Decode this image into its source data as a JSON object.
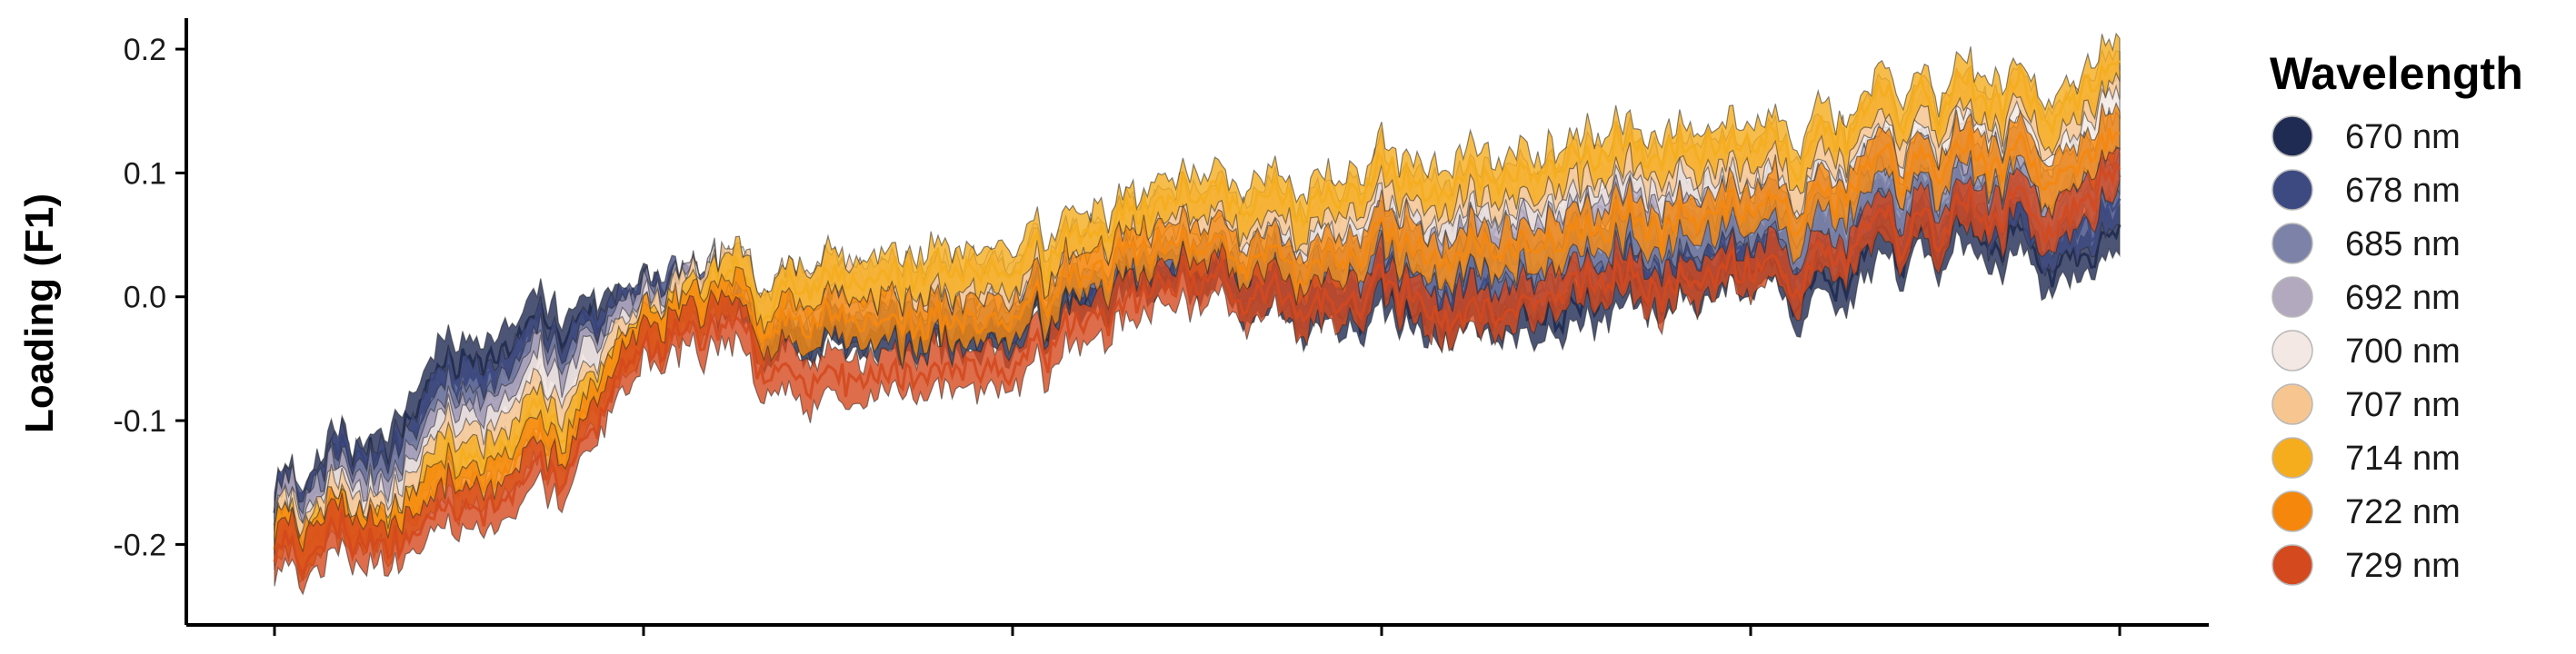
{
  "chart_data": {
    "type": "line",
    "title": "",
    "xlabel": "",
    "ylabel": "Loading (F1)",
    "ylim": [
      -0.265,
      0.225
    ],
    "y_ticks": [
      "-0.2",
      "-0.1",
      "0.0",
      "0.1",
      "0.2"
    ],
    "y_tick_values": [
      -0.2,
      -0.1,
      0.0,
      0.1,
      0.2
    ],
    "x_tick_count": 6,
    "x_tick_labels_visible": false,
    "grid": false,
    "legend": {
      "title": "Wavelength",
      "placement": "right"
    },
    "x": [
      0,
      5,
      10,
      15,
      20,
      25,
      30,
      35,
      40,
      45,
      50,
      55,
      60,
      65,
      70,
      75,
      80,
      85,
      90,
      95,
      100
    ],
    "series": [
      {
        "name": "670 nm",
        "color": "#1f2b52",
        "values": [
          -0.17,
          -0.13,
          -0.05,
          -0.03,
          0.0,
          -0.02,
          -0.02,
          -0.03,
          -0.02,
          0.0,
          0.02,
          0.0,
          -0.01,
          -0.01,
          -0.01,
          0.01,
          0.03,
          0.02,
          0.04,
          0.04,
          0.04
        ]
      },
      {
        "name": "678 nm",
        "color": "#3d4a82",
        "values": [
          -0.17,
          -0.14,
          -0.07,
          -0.05,
          0.0,
          -0.01,
          -0.01,
          -0.02,
          -0.01,
          0.01,
          0.03,
          0.01,
          0.01,
          0.01,
          0.02,
          0.03,
          0.05,
          0.05,
          0.06,
          0.06,
          0.06
        ]
      },
      {
        "name": "685 nm",
        "color": "#7c82a8",
        "values": [
          -0.18,
          -0.15,
          -0.09,
          -0.06,
          -0.01,
          -0.01,
          0.0,
          -0.01,
          0.0,
          0.02,
          0.04,
          0.03,
          0.03,
          0.04,
          0.04,
          0.05,
          0.07,
          0.07,
          0.08,
          0.08,
          0.09
        ]
      },
      {
        "name": "692 nm",
        "color": "#b3a9bf",
        "values": [
          -0.18,
          -0.16,
          -0.1,
          -0.07,
          -0.01,
          0.0,
          0.01,
          0.0,
          0.01,
          0.03,
          0.05,
          0.05,
          0.05,
          0.06,
          0.07,
          0.08,
          0.09,
          0.1,
          0.1,
          0.11,
          0.12
        ]
      },
      {
        "name": "700 nm",
        "color": "#f3e8e3",
        "values": [
          -0.19,
          -0.17,
          -0.11,
          -0.08,
          -0.02,
          0.0,
          0.01,
          0.01,
          0.02,
          0.04,
          0.06,
          0.06,
          0.07,
          0.08,
          0.09,
          0.1,
          0.11,
          0.12,
          0.13,
          0.14,
          0.15
        ]
      },
      {
        "name": "707 nm",
        "color": "#f7c690",
        "values": [
          -0.19,
          -0.18,
          -0.12,
          -0.1,
          -0.02,
          0.0,
          0.02,
          0.01,
          0.02,
          0.04,
          0.07,
          0.07,
          0.08,
          0.09,
          0.1,
          0.11,
          0.12,
          0.13,
          0.14,
          0.15,
          0.17
        ]
      },
      {
        "name": "714 nm",
        "color": "#f5ad1e",
        "values": [
          -0.2,
          -0.19,
          -0.13,
          -0.11,
          -0.03,
          0.0,
          0.02,
          0.02,
          0.03,
          0.05,
          0.08,
          0.08,
          0.09,
          0.1,
          0.11,
          0.12,
          0.13,
          0.14,
          0.15,
          0.16,
          0.18
        ]
      },
      {
        "name": "722 nm",
        "color": "#f5870c",
        "values": [
          -0.2,
          -0.19,
          -0.15,
          -0.13,
          -0.03,
          -0.02,
          -0.01,
          -0.02,
          -0.01,
          0.02,
          0.04,
          0.03,
          0.04,
          0.04,
          0.05,
          0.06,
          0.08,
          0.09,
          0.1,
          0.11,
          0.12
        ]
      },
      {
        "name": "729 nm",
        "color": "#d4491e",
        "values": [
          -0.21,
          -0.2,
          -0.17,
          -0.15,
          -0.04,
          -0.04,
          -0.06,
          -0.06,
          -0.05,
          -0.02,
          0.01,
          0.0,
          0.0,
          -0.01,
          0.01,
          0.01,
          0.03,
          0.04,
          0.05,
          0.07,
          0.09
        ]
      }
    ]
  }
}
